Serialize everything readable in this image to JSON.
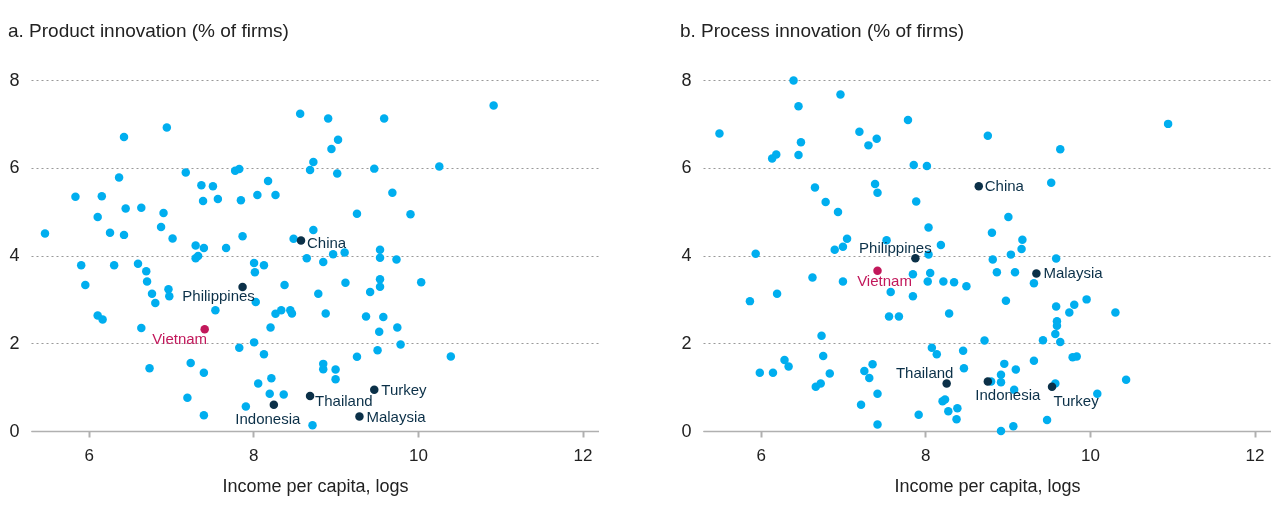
{
  "chart_data": [
    {
      "type": "scatter",
      "title": "a. Product innovation (% of firms)",
      "xlabel": "Income per capita, logs",
      "xlim": [
        5.3,
        12.2
      ],
      "ylim": [
        0,
        8
      ],
      "xticks": [
        6,
        8,
        10,
        12
      ],
      "yticks": [
        0,
        2,
        4,
        6,
        8
      ],
      "grid": "y",
      "marker": "circle",
      "series": [
        {
          "color": "#00aeef",
          "x": [
            5.47,
            5.84,
            5.91,
            5.96,
            6.11,
            6.16,
            6.11,
            6.17,
            6.26,
            6.31,
            6.37,
            6.43,
            6.45,
            6.43,
            6.6,
            6.64,
            6.64,
            6.7,
            6.71,
            6.74,
            6.77,
            6.81,
            6.88,
            6.91,
            6.95,
            6.97,
            6.98,
            7.02,
            7.18,
            7.2,
            7.24,
            7.3,
            7.3,
            7.33,
            7.37,
            7.39,
            7.4,
            7.4,
            7.4,
            7.51,
            7.54,
            7.57,
            7.67,
            7.78,
            7.83,
            7.85,
            7.83,
            7.87,
            7.91,
            8.01,
            8.02,
            8.03,
            8.01,
            8.05,
            8.06,
            8.13,
            8.13,
            8.18,
            8.2,
            8.21,
            8.22,
            8.27,
            8.27,
            8.34,
            8.38,
            8.37,
            8.45,
            8.47,
            8.49,
            8.57,
            8.65,
            8.69,
            8.72,
            8.73,
            8.73,
            8.79,
            8.91,
            9.59,
            10.92,
            9.03,
            8.95,
            9.02,
            9.47,
            10.26,
            9.69,
            9.26,
            9.91,
            9.54,
            9.54,
            8.97,
            9.11,
            8.85,
            9.74,
            9.12,
            9.54,
            9.54,
            9.42,
            10.04,
            8.88,
            9.37,
            9.58,
            9.75,
            9.53,
            9.79,
            9.51,
            9.26,
            10.4,
            8.85,
            8.85,
            9.0,
            9.0
          ],
          "values": [
            4.5,
            5.34,
            3.78,
            3.33,
            4.88,
            5.35,
            2.63,
            2.54,
            4.52,
            3.78,
            5.78,
            6.7,
            5.07,
            4.47,
            3.81,
            5.09,
            2.35,
            3.64,
            3.41,
            1.43,
            3.13,
            2.92,
            4.65,
            4.97,
            6.92,
            3.23,
            3.07,
            4.39,
            5.89,
            0.76,
            1.55,
            4.23,
            3.94,
            3.99,
            5.6,
            5.24,
            4.17,
            1.33,
            0.36,
            5.58,
            2.75,
            5.29,
            4.17,
            5.93,
            5.97,
            5.26,
            1.9,
            4.44,
            0.56,
            3.83,
            3.62,
            2.94,
            2.02,
            5.38,
            1.08,
            3.78,
            1.75,
            5.7,
            0.85,
            2.36,
            1.2,
            5.38,
            2.67,
            2.75,
            3.33,
            0.83,
            2.75,
            2.68,
            4.38,
            7.23,
            3.94,
            5.95,
            0.13,
            6.13,
            4.58,
            3.13,
            7.12,
            7.12,
            7.42,
            6.64,
            6.43,
            5.87,
            5.98,
            6.03,
            5.43,
            4.95,
            4.94,
            4.13,
            3.95,
            4.03,
            4.07,
            3.85,
            3.91,
            3.38,
            3.46,
            3.29,
            3.17,
            3.39,
            2.68,
            2.61,
            2.6,
            2.36,
            2.26,
            1.97,
            1.84,
            1.69,
            1.7,
            1.53,
            1.41,
            1.4,
            1.18
          ]
        },
        {
          "color": "#0b3048",
          "x": [
            8.58,
            7.87,
            8.25,
            8.69,
            9.47,
            9.29
          ],
          "values": [
            4.34,
            3.28,
            0.6,
            0.8,
            0.94,
            0.33
          ]
        },
        {
          "color": "#c2185b",
          "x": [
            7.41
          ],
          "values": [
            2.32
          ]
        }
      ],
      "annotations": [
        {
          "text": "China",
          "x": 8.58,
          "y": 4.34
        },
        {
          "text": "Philippines",
          "x": 7.87,
          "y": 3.28
        },
        {
          "text": "Vietnam",
          "x": 7.41,
          "y": 2.32
        },
        {
          "text": "Indonesia",
          "x": 8.25,
          "y": 0.6
        },
        {
          "text": "Thailand",
          "x": 8.69,
          "y": 0.8
        },
        {
          "text": "Turkey",
          "x": 9.47,
          "y": 0.94
        },
        {
          "text": "Malaysia",
          "x": 9.29,
          "y": 0.33
        }
      ]
    },
    {
      "type": "scatter",
      "title": "b. Process innovation (% of firms)",
      "xlabel": "Income per capita, logs",
      "xlim": [
        5.3,
        12.2
      ],
      "ylim": [
        0,
        8
      ],
      "xticks": [
        6,
        8,
        10,
        12
      ],
      "yticks": [
        0,
        2,
        4,
        6,
        8
      ],
      "grid": "y",
      "marker": "circle",
      "series": [
        {
          "color": "#00aeef",
          "x": [
            5.5,
            5.94,
            5.87,
            5.99,
            6.14,
            6.19,
            6.15,
            6.2,
            6.4,
            6.46,
            6.49,
            6.46,
            6.29,
            6.34,
            6.63,
            6.66,
            6.74,
            6.76,
            6.79,
            6.67,
            6.73,
            6.84,
            6.94,
            6.97,
            6.9,
            7.0,
            7.05,
            7.0,
            7.2,
            7.31,
            7.41,
            7.39,
            7.42,
            7.22,
            7.26,
            7.32,
            7.36,
            7.42,
            7.42,
            7.53,
            7.58,
            7.56,
            7.68,
            7.79,
            7.86,
            8.02,
            7.89,
            8.04,
            8.19,
            8.04,
            7.85,
            8.06,
            7.85,
            8.03,
            8.22,
            8.35,
            8.5,
            8.29,
            8.08,
            8.14,
            8.46,
            8.47,
            7.92,
            8.21,
            8.24,
            8.28,
            8.39,
            8.38,
            8.76,
            9.64,
            10.95,
            9.53,
            9.01,
            8.81,
            9.18,
            9.17,
            8.82,
            9.04,
            9.59,
            8.87,
            9.09,
            9.32,
            8.98,
            9.59,
            9.81,
            9.96,
            9.75,
            10.31,
            9.6,
            9.6,
            9.58,
            9.64,
            9.43,
            8.72,
            9.79,
            9.84,
            9.32,
            8.96,
            9.1,
            8.92,
            8.92,
            8.8,
            9.58,
            9.08,
            10.09,
            10.44,
            9.48,
            9.07,
            8.92
          ],
          "values": [
            6.78,
            4.04,
            2.96,
            1.33,
            6.21,
            6.3,
            1.33,
            3.13,
            7.99,
            7.4,
            6.58,
            6.29,
            1.62,
            1.47,
            3.5,
            5.55,
            2.17,
            1.71,
            5.22,
            1.01,
            1.08,
            1.31,
            4.99,
            7.67,
            4.13,
            4.2,
            4.38,
            3.41,
            6.82,
            6.51,
            6.66,
            5.63,
            5.43,
            0.6,
            1.37,
            1.21,
            1.52,
            0.85,
            0.15,
            4.35,
            3.17,
            2.61,
            2.61,
            7.09,
            6.06,
            6.04,
            5.23,
            4.64,
            4.24,
            4.02,
            3.57,
            3.6,
            3.07,
            3.41,
            3.41,
            3.39,
            3.3,
            2.68,
            1.9,
            1.75,
            1.83,
            1.43,
            0.37,
            0.68,
            0.72,
            0.45,
            0.52,
            0.27,
            6.73,
            6.42,
            7.0,
            5.66,
            4.88,
            4.52,
            4.36,
            4.15,
            3.91,
            4.02,
            3.93,
            3.62,
            3.62,
            3.37,
            2.97,
            2.84,
            2.88,
            3.0,
            2.7,
            2.7,
            2.5,
            2.4,
            2.21,
            2.03,
            2.07,
            2.06,
            1.68,
            1.7,
            1.6,
            1.53,
            1.4,
            1.28,
            1.11,
            1.13,
            1.08,
            0.94,
            0.85,
            1.17,
            0.25,
            0.11,
            0.0
          ]
        },
        {
          "color": "#0b3048",
          "x": [
            8.65,
            7.88,
            9.35,
            8.26,
            8.76,
            9.54
          ],
          "values": [
            5.58,
            3.94,
            3.59,
            1.08,
            1.13,
            1.01
          ]
        },
        {
          "color": "#c2185b",
          "x": [
            7.42
          ],
          "values": [
            3.65
          ]
        }
      ],
      "annotations": [
        {
          "text": "China",
          "x": 8.65,
          "y": 5.58
        },
        {
          "text": "Philippines",
          "x": 7.88,
          "y": 3.94
        },
        {
          "text": "Vietnam",
          "x": 7.42,
          "y": 3.65
        },
        {
          "text": "Malaysia",
          "x": 9.35,
          "y": 3.59
        },
        {
          "text": "Thailand",
          "x": 8.26,
          "y": 1.08
        },
        {
          "text": "Indonesia",
          "x": 8.76,
          "y": 1.13
        },
        {
          "text": "Turkey",
          "x": 9.54,
          "y": 1.01
        }
      ]
    }
  ]
}
